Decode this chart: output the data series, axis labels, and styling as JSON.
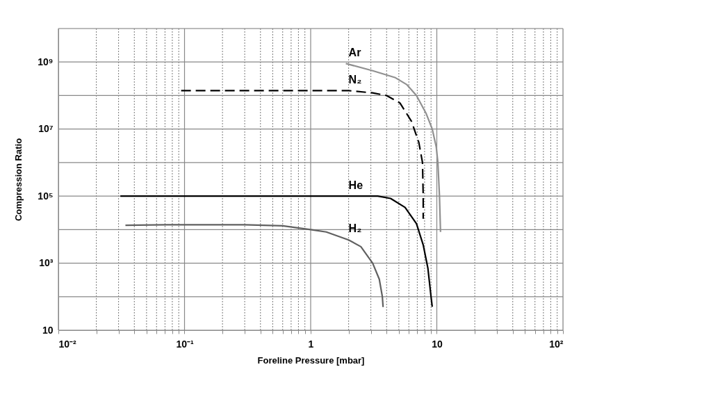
{
  "chart_data": {
    "type": "line",
    "xlabel": "Foreline Pressure [mbar]",
    "ylabel": "Compression Ratio",
    "log": "xy",
    "grid": true,
    "xlim": [
      0.01,
      100
    ],
    "ylim": [
      10,
      10000000000
    ],
    "xticks": [
      {
        "value": 0.01,
        "label": "10⁻²"
      },
      {
        "value": 0.02,
        "label": null
      },
      {
        "value": 0.03,
        "label": null
      },
      {
        "value": 0.04,
        "label": null
      },
      {
        "value": 0.05,
        "label": null
      },
      {
        "value": 0.06,
        "label": null
      },
      {
        "value": 0.07,
        "label": null
      },
      {
        "value": 0.08,
        "label": null
      },
      {
        "value": 0.09,
        "label": null
      },
      {
        "value": 0.1,
        "label": "10⁻¹"
      },
      {
        "value": 0.2,
        "label": null
      },
      {
        "value": 0.3,
        "label": null
      },
      {
        "value": 0.4,
        "label": null
      },
      {
        "value": 0.5,
        "label": null
      },
      {
        "value": 0.6,
        "label": null
      },
      {
        "value": 0.7,
        "label": null
      },
      {
        "value": 0.8,
        "label": null
      },
      {
        "value": 0.9,
        "label": null
      },
      {
        "value": 1,
        "label": "1"
      },
      {
        "value": 2,
        "label": null
      },
      {
        "value": 3,
        "label": null
      },
      {
        "value": 4,
        "label": null
      },
      {
        "value": 5,
        "label": null
      },
      {
        "value": 6,
        "label": null
      },
      {
        "value": 7,
        "label": null
      },
      {
        "value": 8,
        "label": null
      },
      {
        "value": 9,
        "label": null
      },
      {
        "value": 10,
        "label": "10"
      },
      {
        "value": 20,
        "label": null
      },
      {
        "value": 30,
        "label": null
      },
      {
        "value": 40,
        "label": null
      },
      {
        "value": 50,
        "label": null
      },
      {
        "value": 60,
        "label": null
      },
      {
        "value": 70,
        "label": null
      },
      {
        "value": 80,
        "label": null
      },
      {
        "value": 90,
        "label": null
      },
      {
        "value": 100,
        "label": "10²"
      }
    ],
    "yticks": [
      {
        "value": 10,
        "label": "10"
      },
      {
        "value": 100,
        "label": null
      },
      {
        "value": 1000,
        "label": "10³"
      },
      {
        "value": 10000,
        "label": null
      },
      {
        "value": 100000,
        "label": "10⁵"
      },
      {
        "value": 1000000,
        "label": null
      },
      {
        "value": 10000000,
        "label": "10⁷"
      },
      {
        "value": 100000000,
        "label": null
      },
      {
        "value": 1000000000,
        "label": "10⁹"
      }
    ],
    "series": [
      {
        "name": "Ar",
        "color": "#909090",
        "line_style": "solid",
        "x": [
          1.9,
          3.1,
          4.7,
          5.8,
          6.9,
          8.2,
          9.2,
          9.9,
          10.2,
          10.5,
          10.7
        ],
        "values": [
          900000000,
          550000000,
          340000000,
          210000000,
          100000000,
          30000000,
          10000000,
          2900000,
          1000000,
          100000,
          8500
        ]
      },
      {
        "name": "N₂",
        "color": "#000000",
        "line_style": "dashed",
        "x": [
          0.094,
          0.3,
          1,
          2.0,
          3.1,
          4.0,
          5.1,
          6.3,
          7.2,
          7.7,
          7.8,
          7.8
        ],
        "values": [
          140000000,
          140000000,
          140000000,
          140000000,
          120000000,
          100000000,
          60000000,
          17000000,
          4000000,
          1000000,
          100000,
          21000
        ]
      },
      {
        "name": "He",
        "color": "#000000",
        "line_style": "solid",
        "x": [
          0.031,
          0.3,
          1,
          3.4,
          4.3,
          5.6,
          6.9,
          7.8,
          8.5,
          9.0,
          9.2
        ],
        "values": [
          100000,
          100000,
          100000,
          100000,
          85000,
          46000,
          15000,
          3500,
          700,
          100,
          50
        ]
      },
      {
        "name": "H₂",
        "color": "#606060",
        "line_style": "solid",
        "x": [
          0.034,
          0.071,
          0.3,
          0.6,
          1,
          1.33,
          2.0,
          2.5,
          3.1,
          3.5,
          3.7,
          3.75
        ],
        "values": [
          13500,
          14000,
          14000,
          13000,
          10000,
          8500,
          4900,
          3100,
          1000,
          330,
          100,
          49
        ]
      }
    ]
  }
}
